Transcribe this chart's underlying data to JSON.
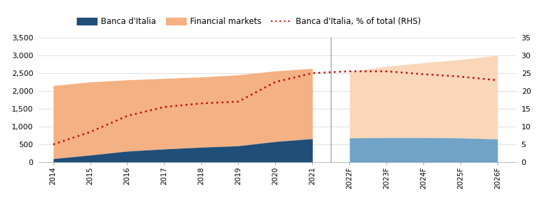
{
  "years_hist": [
    2014,
    2015,
    2016,
    2017,
    2018,
    2019,
    2020,
    2021
  ],
  "years_fcast": [
    2022,
    2023,
    2024,
    2025,
    2026
  ],
  "banca_italia_hist": [
    100,
    200,
    310,
    370,
    420,
    460,
    580,
    660
  ],
  "banca_italia_fcast": [
    680,
    690,
    690,
    680,
    650
  ],
  "financial_markets_hist": [
    2050,
    2050,
    2000,
    1980,
    1970,
    1990,
    1980,
    1970
  ],
  "financial_markets_fcast": [
    1870,
    2000,
    2100,
    2200,
    2350
  ],
  "pct_hist": [
    5.0,
    8.5,
    13.0,
    15.5,
    16.5,
    17.0,
    22.5,
    25.0
  ],
  "pct_fcast": [
    25.5,
    25.5,
    24.7,
    24.0,
    23.0
  ],
  "ylim_left": [
    0,
    3500
  ],
  "ylim_right": [
    0,
    35
  ],
  "yticks_left": [
    0,
    500,
    1000,
    1500,
    2000,
    2500,
    3000,
    3500
  ],
  "yticks_right": [
    0,
    5,
    10,
    15,
    20,
    25,
    30,
    35
  ],
  "color_banca_hist": "#1f4e79",
  "color_banca_fcast": "#6fa3c8",
  "color_financial_hist": "#f4b183",
  "color_financial_fcast": "#fad7b8",
  "color_dotted": "#c00000",
  "legend_labels": [
    "Banca d'Italia",
    "Financial markets",
    "Banca d'Italia, % of total (RHS)"
  ],
  "vline_x": 2021.5,
  "background_color": "#ffffff"
}
